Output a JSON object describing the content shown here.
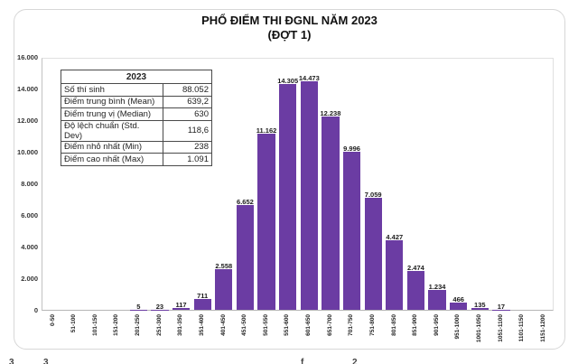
{
  "header": {
    "title_line1": "PHỔ ĐIỂM THI ĐGNL NĂM 2023",
    "title_line2": "(ĐỢT 1)"
  },
  "stats_table": {
    "header": "2023",
    "rows": [
      {
        "label": "Số thí sinh",
        "value": "88.052"
      },
      {
        "label": "Điểm trung bình (Mean)",
        "value": "639,2"
      },
      {
        "label": "Điểm trung vị (Median)",
        "value": "630"
      },
      {
        "label": "Độ lệch chuẩn (Std. Dev)",
        "value": "118,6"
      },
      {
        "label": "Điểm nhỏ nhất (Min)",
        "value": "238"
      },
      {
        "label": "Điểm cao nhất (Max)",
        "value": "1.091"
      }
    ]
  },
  "chart_data": {
    "type": "bar",
    "title": "PHỔ ĐIỂM THI ĐGNL NĂM 2023 (ĐỢT 1)",
    "categories": [
      "0-50",
      "51-100",
      "101-150",
      "151-200",
      "201-250",
      "251-300",
      "301-350",
      "351-400",
      "401-450",
      "451-500",
      "501-550",
      "551-600",
      "601-650",
      "651-700",
      "701-750",
      "751-800",
      "801-850",
      "851-900",
      "901-950",
      "951-1000",
      "1001-1050",
      "1051-1100",
      "1101-1150",
      "1151-1200"
    ],
    "values": [
      0,
      0,
      0,
      0,
      5,
      23,
      117,
      711,
      2558,
      6652,
      11162,
      14305,
      14473,
      12238,
      9996,
      7059,
      4427,
      2474,
      1234,
      466,
      135,
      17,
      0,
      0
    ],
    "value_labels": [
      "",
      "",
      "",
      "",
      "5",
      "23",
      "117",
      "711",
      "2.558",
      "6.652",
      "11.162",
      "14.305",
      "14.473",
      "12.238",
      "9.996",
      "7.059",
      "4.427",
      "2.474",
      "1.234",
      "466",
      "135",
      "17",
      "",
      ""
    ],
    "yticks": [
      0,
      2000,
      4000,
      6000,
      8000,
      10000,
      12000,
      14000,
      16000
    ],
    "ytick_labels": [
      "0",
      "2.000",
      "4.000",
      "6.000",
      "8.000",
      "10.000",
      "12.000",
      "14.000",
      "16.000"
    ],
    "ylim": [
      0,
      16000
    ],
    "xlabel": "",
    "ylabel": "",
    "grid": false,
    "legend": "none",
    "bar_color": "#6B3CA3"
  },
  "colors": {
    "bar": "#6B3CA3",
    "card_border": "#d7d7d7",
    "axis": "#b5b5b5"
  },
  "footer_fragments": {
    "f0": "3",
    "f1": "3",
    "f2": "f",
    "f3": "2"
  }
}
